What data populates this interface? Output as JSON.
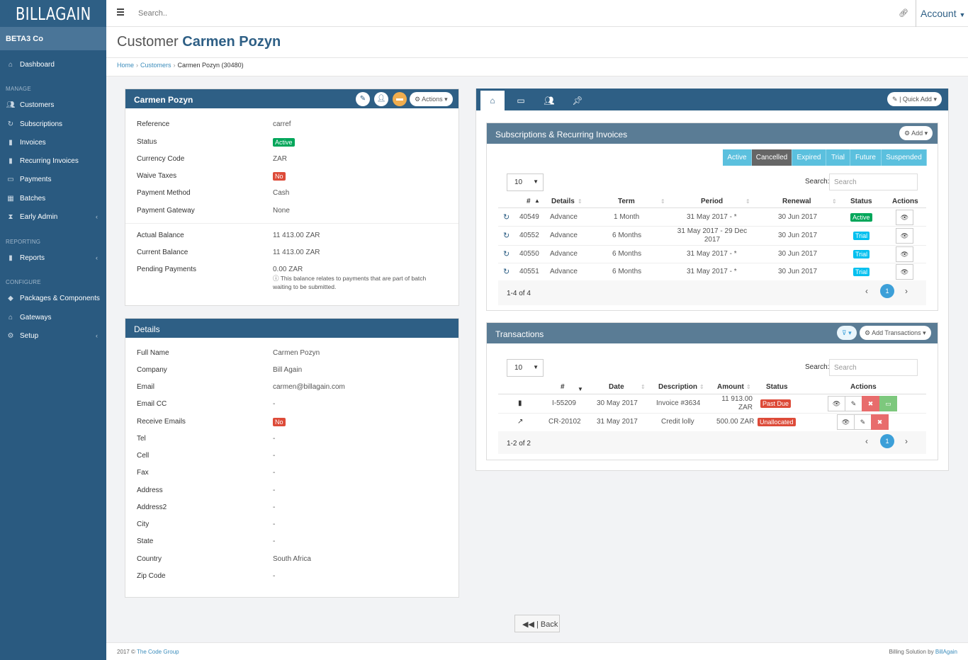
{
  "brand": {
    "name": "BILLAGAIN"
  },
  "topbar": {
    "search_placeholder": "Search..",
    "account_label": "Account"
  },
  "sidebar": {
    "company": "BETA3 Co",
    "dashboard": "Dashboard",
    "manage_heading": "MANAGE",
    "manage_items": [
      "Customers",
      "Subscriptions",
      "Invoices",
      "Recurring Invoices",
      "Payments",
      "Batches",
      "Early Admin"
    ],
    "reporting_heading": "REPORTING",
    "reports": "Reports",
    "configure_heading": "CONFIGURE",
    "configure_items": [
      "Packages & Components",
      "Gateways",
      "Setup"
    ]
  },
  "page": {
    "title_prefix": "Customer",
    "title_name": "Carmen Pozyn"
  },
  "breadcrumb": {
    "home": "Home",
    "customers": "Customers",
    "current": "Carmen Pozyn (30480)"
  },
  "customer_panel": {
    "title": "Carmen Pozyn",
    "actions_label": "Actions",
    "fields": [
      {
        "label": "Reference",
        "value": "carref"
      },
      {
        "label": "Status",
        "value": "Active"
      },
      {
        "label": "Currency Code",
        "value": "ZAR"
      },
      {
        "label": "Waive Taxes",
        "value": "No"
      },
      {
        "label": "Payment Method",
        "value": "Cash"
      },
      {
        "label": "Payment Gateway",
        "value": "None"
      }
    ],
    "balances": [
      {
        "label": "Actual Balance",
        "value": "11 413.00 ZAR"
      },
      {
        "label": "Current Balance",
        "value": "11 413.00 ZAR"
      },
      {
        "label": "Pending Payments",
        "value": "0.00 ZAR"
      }
    ],
    "pending_note": "This balance relates to payments that are part of batch waiting to be submitted."
  },
  "details_panel": {
    "title": "Details",
    "fields": [
      {
        "label": "Full Name",
        "value": "Carmen Pozyn"
      },
      {
        "label": "Company",
        "value": "Bill Again"
      },
      {
        "label": "Email",
        "value": "carmen@billagain.com"
      },
      {
        "label": "Email CC",
        "value": "-"
      },
      {
        "label": "Receive Emails",
        "value": "No"
      },
      {
        "label": "Tel",
        "value": "-"
      },
      {
        "label": "Cell",
        "value": "-"
      },
      {
        "label": "Fax",
        "value": "-"
      },
      {
        "label": "Address",
        "value": "-"
      },
      {
        "label": "Address2",
        "value": "-"
      },
      {
        "label": "City",
        "value": "-"
      },
      {
        "label": "State",
        "value": "-"
      },
      {
        "label": "Country",
        "value": "South Africa"
      },
      {
        "label": "Zip Code",
        "value": "-"
      }
    ]
  },
  "tabs": {
    "quick_add": "| Quick Add"
  },
  "subscriptions": {
    "title": "Subscriptions & Recurring Invoices",
    "add_label": "Add",
    "filters": [
      "Active",
      "Cancelled",
      "Expired",
      "Trial",
      "Future",
      "Suspended"
    ],
    "page_size": "10",
    "search_label": "Search:",
    "search_placeholder": "Search",
    "columns": [
      "#",
      "Details",
      "Term",
      "Period",
      "Renewal",
      "Status",
      "Actions"
    ],
    "rows": [
      {
        "id": "40549",
        "details": "Advance",
        "term": "1 Month",
        "period": "31 May 2017 - *",
        "renewal": "30 Jun 2017",
        "status": "Active"
      },
      {
        "id": "40552",
        "details": "Advance",
        "term": "6 Months",
        "period": "31 May 2017 - 29 Dec 2017",
        "renewal": "30 Jun 2017",
        "status": "Trial"
      },
      {
        "id": "40550",
        "details": "Advance",
        "term": "6 Months",
        "period": "31 May 2017 - *",
        "renewal": "30 Jun 2017",
        "status": "Trial"
      },
      {
        "id": "40551",
        "details": "Advance",
        "term": "6 Months",
        "period": "31 May 2017 - *",
        "renewal": "30 Jun 2017",
        "status": "Trial"
      }
    ],
    "count_text": "1-4 of 4",
    "page": "1"
  },
  "transactions": {
    "title": "Transactions",
    "add_label": "Add Transactions",
    "page_size": "10",
    "search_label": "Search:",
    "search_placeholder": "Search",
    "columns": [
      "#",
      "Date",
      "Description",
      "Amount",
      "Status",
      "Actions"
    ],
    "rows": [
      {
        "id": "I-55209",
        "date": "30 May 2017",
        "description": "Invoice #3634",
        "amount": "11 913.00 ZAR",
        "status": "Past Due"
      },
      {
        "id": "CR-20102",
        "date": "31 May 2017",
        "description": "Credit lolly",
        "amount": "500.00 ZAR",
        "status": "Unallocated"
      }
    ],
    "count_text": "1-2 of 2",
    "page": "1"
  },
  "back_label": "| Back",
  "footer": {
    "left_prefix": "2017 ©",
    "left_link": "The Code Group",
    "right_prefix": "Billing Solution by",
    "right_link": "BillAgain"
  },
  "colors": {
    "primary": "#2e5f85",
    "sidebar": "#2a5a80",
    "active": "#00a65a",
    "danger": "#dd4b39",
    "info": "#00c0ef"
  }
}
